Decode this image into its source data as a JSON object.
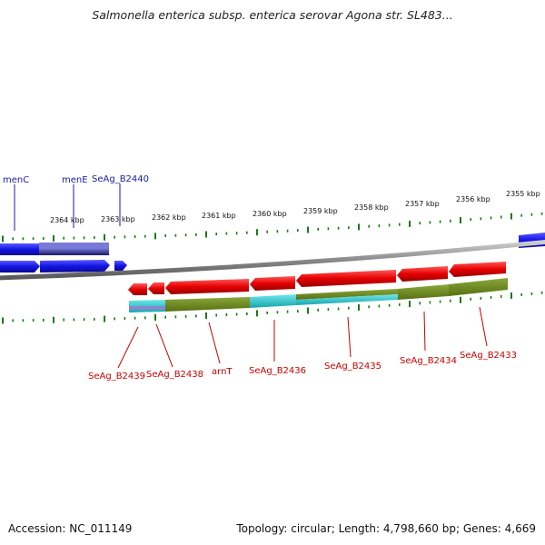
{
  "title": "Salmonella enterica subsp. enterica serovar Agona str. SL483...",
  "footer": {
    "accession_label": "Accession:",
    "accession": "NC_011149",
    "topology_label": "Topology:",
    "topology": "circular",
    "length_label": "Length:",
    "length": "4,798,660 bp",
    "genes_label": "Genes:",
    "genes": "4,669"
  },
  "kb_labels": [
    "2364 kbp",
    "2363 kbp",
    "2362 kbp",
    "2361 kbp",
    "2360 kbp",
    "2359 kbp",
    "2358 kbp",
    "2357 kbp",
    "2356 kbp",
    "2355 kbp"
  ],
  "genes_top": [
    "menC",
    "menE",
    "SeAg_B2440"
  ],
  "genes_bottom": [
    "SeAg_B2439",
    "SeAg_B2438",
    "arnT",
    "SeAg_B2436",
    "SeAg_B2435",
    "SeAg_B2434",
    "SeAg_B2433"
  ],
  "colors": {
    "forward_gene": "#1414e6",
    "reverse_gene": "#e60000",
    "ticks": "#1a7a1a",
    "backbone": "#888888",
    "olive_feature": "#6b8a1c",
    "cyan_feature": "#1fc4cc",
    "label_blue": "#1a1aa8",
    "label_red": "#c80000"
  }
}
